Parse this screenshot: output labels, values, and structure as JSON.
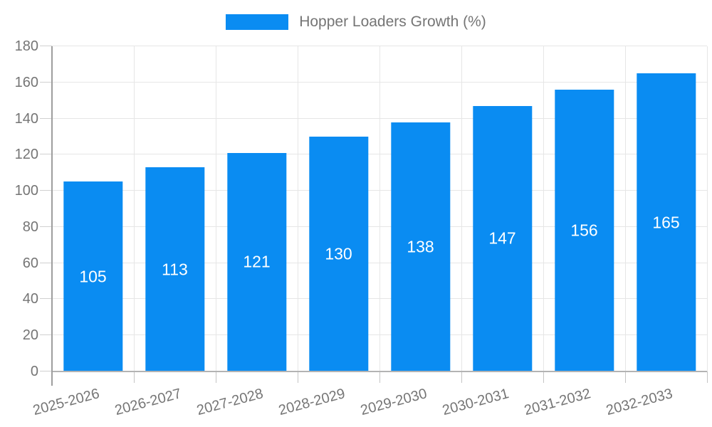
{
  "legend": {
    "label": "Hopper Loaders Growth (%)"
  },
  "chart_data": {
    "type": "bar",
    "title": "Hopper Loaders Growth (%)",
    "categories": [
      "2025-2026",
      "2026-2027",
      "2027-2028",
      "2028-2029",
      "2029-2030",
      "2030-2031",
      "2031-2032",
      "2032-2033"
    ],
    "values": [
      105,
      113,
      121,
      130,
      138,
      147,
      156,
      165
    ],
    "xlabel": "",
    "ylabel": "",
    "ylim": [
      0,
      180
    ],
    "ytick_step": 20,
    "yticks": [
      0,
      20,
      40,
      60,
      80,
      100,
      120,
      140,
      160,
      180
    ],
    "grid": true,
    "legend_position": "top-center",
    "bar_color": "#0a8cf2",
    "bar_value_label_color": "#ffffff",
    "axis_text_color": "#757575",
    "gridline_color": "#e6e6e6"
  }
}
